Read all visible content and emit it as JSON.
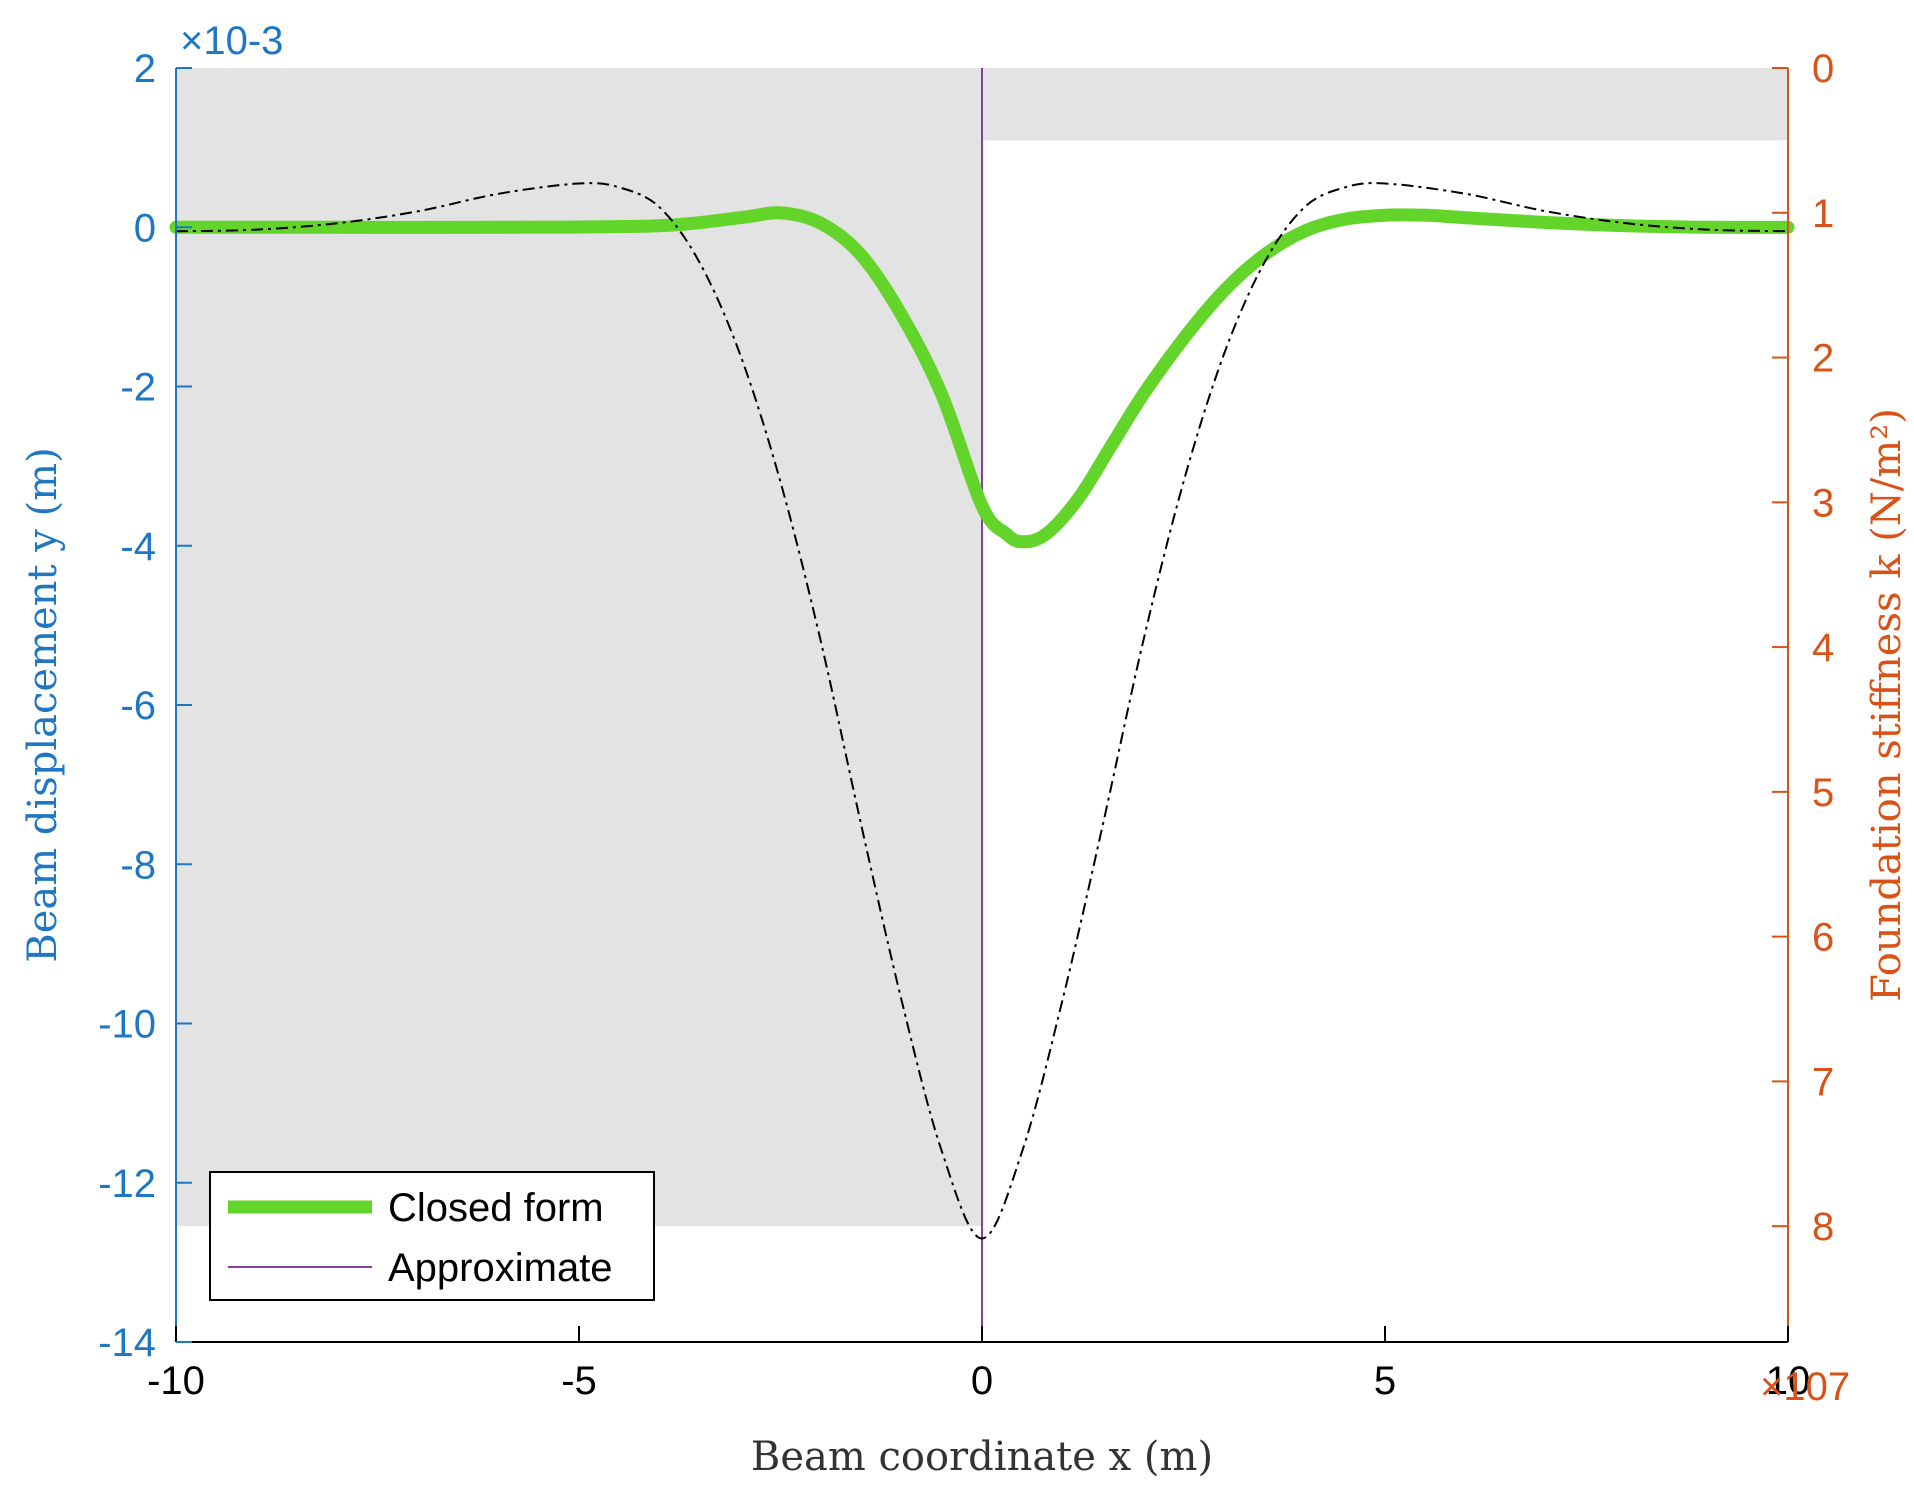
{
  "chart_data": {
    "type": "line",
    "title": "",
    "xlabel": "Beam coordinate x (m)",
    "ylabel_left": "Beam displacement y (m)",
    "ylabel_right": "Foundation stiffness k (N/m²)",
    "xlim": [
      -10,
      10
    ],
    "xticks": [
      "-10",
      "-5",
      "0",
      "5",
      "10"
    ],
    "ylim_left": [
      -14,
      2
    ],
    "yticks_left": [
      "2",
      "0",
      "-2",
      "-4",
      "-6",
      "-8",
      "-10",
      "-12",
      "-14"
    ],
    "left_exponent": "×10-3",
    "ylim_right": [
      0,
      8.8
    ],
    "right_axis_reversed": true,
    "yticks_right": [
      "0",
      "1",
      "2",
      "3",
      "4",
      "5",
      "6",
      "7",
      "8"
    ],
    "right_exponent": "×107",
    "grid": false,
    "legend": {
      "placement": "bottom-left",
      "entries": [
        "Closed form",
        "Approximate"
      ]
    },
    "colors": {
      "left_axis": "#1f77c4",
      "right_axis": "#d95319",
      "closed_form": "#62d42a",
      "approximate": "#000000",
      "load_line": "#8b3d9a",
      "stiffness_fill": "#e3e3e3"
    },
    "stiffness_profile": {
      "x": [
        -10,
        -7.3,
        0,
        0,
        7.3,
        10
      ],
      "k_1e7": [
        8.0,
        8.0,
        8.0,
        0.5,
        0.5,
        0.5
      ]
    },
    "series": [
      {
        "name": "Closed form",
        "x": [
          -10,
          -8,
          -6,
          -4,
          -3,
          -2.5,
          -2,
          -1.5,
          -1,
          -0.5,
          0,
          0.3,
          0.5,
          0.8,
          1.2,
          1.6,
          2,
          2.5,
          3,
          3.5,
          4,
          4.5,
          5,
          5.5,
          6,
          7,
          8,
          9,
          10
        ],
        "y_1e-3": [
          0,
          0,
          0,
          0.02,
          0.12,
          0.18,
          0.05,
          -0.35,
          -1.1,
          -2.1,
          -3.5,
          -3.85,
          -3.95,
          -3.85,
          -3.4,
          -2.75,
          -2.1,
          -1.4,
          -0.8,
          -0.35,
          -0.05,
          0.1,
          0.15,
          0.15,
          0.12,
          0.06,
          0.02,
          0.0,
          0.0
        ]
      },
      {
        "name": "Approximate",
        "x": [
          -10,
          -9,
          -8,
          -7,
          -6,
          -5,
          -4.5,
          -4,
          -3.5,
          -3,
          -2.5,
          -2,
          -1.5,
          -1,
          -0.5,
          0,
          0.5,
          1,
          1.5,
          2,
          2.5,
          3,
          3.5,
          4,
          4.5,
          5,
          6,
          7,
          8,
          9,
          10
        ],
        "y_1e-3": [
          -0.05,
          -0.03,
          0.05,
          0.2,
          0.42,
          0.55,
          0.5,
          0.25,
          -0.45,
          -1.6,
          -3.2,
          -5.2,
          -7.5,
          -9.7,
          -11.6,
          -12.7,
          -11.6,
          -9.7,
          -7.5,
          -5.2,
          -3.2,
          -1.6,
          -0.45,
          0.25,
          0.5,
          0.55,
          0.42,
          0.2,
          0.05,
          -0.03,
          -0.05
        ]
      }
    ]
  }
}
